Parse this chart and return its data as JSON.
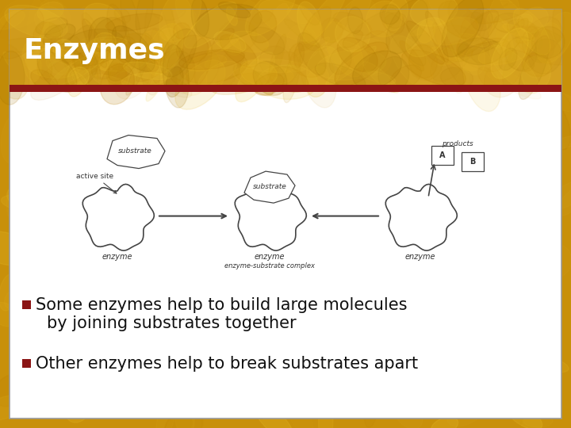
{
  "title": "Enzymes",
  "title_color": "#ffffff",
  "title_bg_top": "#D4A020",
  "title_bar_color": "#8B1515",
  "outer_bg_color": "#C8900A",
  "slide_border_color": "#999999",
  "bullet_color": "#8B1515",
  "bullet_text_color": "#111111",
  "bullet1_line1": "Some enzymes help to build large molecules",
  "bullet1_line2": "    by joining substrates together",
  "bullet2": "Other enzymes help to break substrates apart",
  "bullet_fontsize": 15,
  "title_fontsize": 26,
  "diagram_edge_color": "#444444",
  "diagram_text_color": "#333333",
  "diagram_label_fontsize": 7,
  "diagram_small_fontsize": 6
}
